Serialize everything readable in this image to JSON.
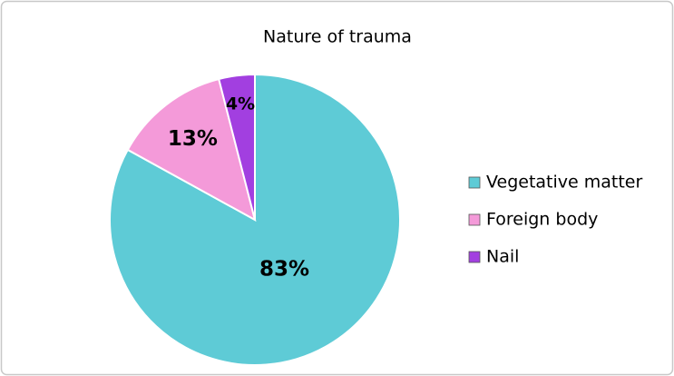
{
  "chart_data": {
    "type": "pie",
    "title": "Nature of trauma",
    "categories": [
      "Vegetative matter",
      "Foreign body",
      "Nail"
    ],
    "values": [
      83,
      13,
      4
    ],
    "value_labels": [
      "83%",
      "13%",
      "4%"
    ],
    "colors": [
      "#5ecbd6",
      "#f49ad9",
      "#a23fe0"
    ],
    "legend": "right"
  }
}
